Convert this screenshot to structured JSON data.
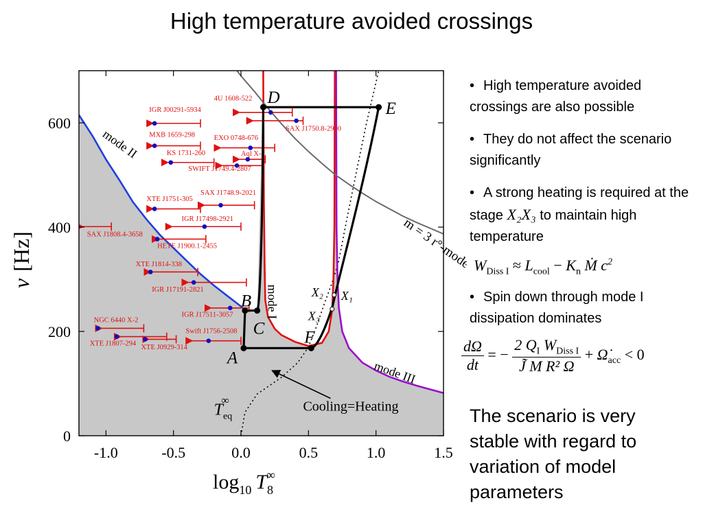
{
  "slide": {
    "title": "High temperature avoided crossings",
    "bullets": [
      {
        "text": "High temperature avoided crossings are also possible"
      },
      {
        "text": "They do not affect the scenario significantly"
      },
      {
        "text_before": "A strong heating is required at the stage ",
        "var": "X₂X₃",
        "text_after": " to maintain high temperature"
      },
      {
        "text": "Spin down through mode I dissipation dominates"
      }
    ],
    "equation1": {
      "lhs": "W",
      "lhs_sub": "Diss I",
      "op": "≈",
      "t1": "L",
      "t1_sub": "cool",
      "minus": "−",
      "t2": "K",
      "t2_sub": "n",
      "t3": "Ṁ c",
      "t3_sup": "2"
    },
    "equation2": {
      "lhs_num": "dΩ",
      "lhs_den": "dt",
      "eq": "= −",
      "rhs_num": "2 Q",
      "rhs_num_sub": "I",
      "rhs_num2": "W",
      "rhs_num2_sub": "Diss I",
      "rhs_den": "J̃ M R² Ω",
      "plus": "+",
      "acc": "Ω̇",
      "acc_sub": "acc",
      "tail": "< 0"
    },
    "conclusion": "The scenario is very stable with regard to variation of model parameters"
  },
  "chart_data": {
    "type": "line",
    "xlabel_base": "log",
    "xlabel_sub": "10",
    "xlabel_var": "T",
    "xlabel_var_sub": "8",
    "xlabel_var_sup": "∞",
    "ylabel_var": "ν",
    "ylabel_unit": "[Hz]",
    "xlim": [
      -1.2,
      1.5
    ],
    "ylim": [
      0,
      700
    ],
    "x_ticks": [
      -1.0,
      -0.5,
      0.0,
      0.5,
      1.0,
      1.5
    ],
    "x_tick_labels": [
      "-1.0",
      "-0.5",
      "0.0",
      "0.5",
      "1.0",
      "1.5"
    ],
    "y_ticks": [
      0,
      200,
      400,
      600
    ],
    "y_tick_labels": [
      "0",
      "200",
      "400",
      "600"
    ],
    "colors": {
      "mode_II": "#1f3fe0",
      "mode_I": "#e01010",
      "mode_III": "#9a10c8",
      "r_mode": "#6a6a6a",
      "unstable_region": "#c8c8c8",
      "path": "#000000",
      "sources": "#e01010",
      "source_dot": "#1010c0"
    },
    "curve_labels": [
      {
        "text": "mode II",
        "x": -1.03,
        "y": 575
      },
      {
        "text": "mode I",
        "x": 0.2,
        "y": 290
      },
      {
        "text": "mode III",
        "x": 0.98,
        "y": 128
      },
      {
        "text": "m = 3 r°-mode",
        "x": 1.2,
        "y": 405
      }
    ],
    "series": [
      {
        "name": "mode II",
        "color": "#1f3fe0",
        "x": [
          -1.2,
          -1.1,
          -1.0,
          -0.9,
          -0.8,
          -0.7,
          -0.6,
          -0.5,
          -0.4,
          -0.3,
          -0.2,
          -0.1,
          0.0,
          0.05
        ],
        "y": [
          615,
          575,
          530,
          490,
          448,
          415,
          385,
          360,
          335,
          310,
          288,
          268,
          248,
          238
        ]
      },
      {
        "name": "mode I",
        "color": "#e01010",
        "x": [
          0.165,
          0.17,
          0.175,
          0.18,
          0.2,
          0.25,
          0.3,
          0.4,
          0.5,
          0.6,
          0.65,
          0.675,
          0.685,
          0.692,
          0.695
        ],
        "y": [
          700,
          450,
          330,
          260,
          228,
          205,
          193,
          180,
          172,
          178,
          200,
          240,
          300,
          400,
          700
        ]
      },
      {
        "name": "mode III",
        "color": "#9a10c8",
        "x": [
          0.705,
          0.708,
          0.715,
          0.725,
          0.75,
          0.8,
          0.9,
          1.0,
          1.1,
          1.2,
          1.3,
          1.4,
          1.5
        ],
        "y": [
          700,
          400,
          300,
          245,
          200,
          168,
          140,
          125,
          113,
          104,
          96,
          89,
          82
        ]
      },
      {
        "name": "m = 3 r°-mode",
        "color": "#6a6a6a",
        "x": [
          -0.03,
          0.0,
          0.1,
          0.2,
          0.3,
          0.4,
          0.5,
          0.6,
          0.7,
          0.8,
          0.9,
          1.0,
          1.1,
          1.2,
          1.3,
          1.4,
          1.5
        ],
        "y": [
          700,
          690,
          660,
          628,
          598,
          570,
          545,
          522,
          500,
          482,
          465,
          449,
          435,
          421,
          409,
          398,
          387
        ]
      }
    ],
    "unstable_region": {
      "x": [
        -1.2,
        -1.1,
        -1.0,
        -0.9,
        -0.8,
        -0.7,
        -0.6,
        -0.5,
        -0.4,
        -0.3,
        -0.2,
        -0.1,
        0.0,
        0.05,
        0.12,
        0.165,
        0.17,
        0.175,
        0.18,
        0.2,
        0.25,
        0.3,
        0.4,
        0.5,
        0.6,
        0.65,
        0.675,
        0.685,
        0.692,
        0.695,
        0.705,
        0.708,
        0.715,
        0.725,
        0.75,
        0.8,
        0.9,
        1.0,
        1.1,
        1.2,
        1.3,
        1.4,
        1.5,
        1.5,
        -1.2
      ],
      "y": [
        615,
        575,
        530,
        490,
        448,
        415,
        385,
        360,
        335,
        310,
        288,
        268,
        248,
        238,
        236,
        700,
        450,
        330,
        260,
        228,
        205,
        193,
        180,
        172,
        178,
        200,
        240,
        300,
        400,
        700,
        700,
        400,
        300,
        245,
        200,
        168,
        140,
        125,
        113,
        104,
        96,
        89,
        82,
        0,
        0
      ]
    },
    "equilibrium_curve": {
      "label": "T",
      "label_sub": "eq",
      "label_sup": "∞",
      "x": [
        0.0,
        0.03,
        0.12,
        0.3,
        0.42,
        0.5,
        0.56,
        0.62,
        0.67,
        0.72,
        0.78,
        0.85,
        0.93,
        1.02
      ],
      "y": [
        0,
        45,
        80,
        112,
        140,
        170,
        210,
        255,
        290,
        330,
        410,
        500,
        600,
        700
      ]
    },
    "annotation": {
      "text": "Cooling=Heating",
      "text_x": 0.46,
      "text_y": 48,
      "arrow_to_x": 0.23,
      "arrow_to_y": 125
    },
    "path": {
      "points": [
        {
          "label": "A",
          "x": 0.02,
          "y": 168
        },
        {
          "label": "B",
          "x": 0.03,
          "y": 240
        },
        {
          "label": "C",
          "x": 0.12,
          "y": 240
        },
        {
          "label": "D",
          "x": 0.165,
          "y": 630
        },
        {
          "label": "E",
          "x": 1.02,
          "y": 630
        },
        {
          "label": "F",
          "x": 0.52,
          "y": 168
        }
      ],
      "crossing_points": [
        {
          "label": "X₂",
          "label2": "X₁",
          "x": 0.69,
          "y": 270
        },
        {
          "label": "X₃",
          "x": 0.675,
          "y": 243
        }
      ]
    },
    "sources": [
      {
        "name": "4U 1608-522",
        "x_lo": -0.04,
        "x_hi": 0.38,
        "y": 620,
        "dot": 0.22,
        "label_x": -0.2,
        "label_y": 643
      },
      {
        "name": "IGR J00291-5934",
        "x_lo": -0.68,
        "x_hi": -0.3,
        "y": 599,
        "dot": -0.64,
        "label_x": -0.68,
        "label_y": 621
      },
      {
        "name": "SAX J1750.8-2900",
        "x_lo": 0.06,
        "x_hi": 0.46,
        "y": 604,
        "dot": 0.41,
        "label_x": 0.33,
        "label_y": 585
      },
      {
        "name": "MXB 1659-298",
        "x_lo": -0.68,
        "x_hi": -0.3,
        "y": 556,
        "dot": -0.64,
        "label_x": -0.68,
        "label_y": 573
      },
      {
        "name": "EXO 0748-676",
        "x_lo": -0.18,
        "x_hi": 0.25,
        "y": 552,
        "dot": 0.07,
        "label_x": -0.2,
        "label_y": 567
      },
      {
        "name": "KS 1731-260",
        "x_lo": -0.57,
        "x_hi": -0.2,
        "y": 524,
        "dot": -0.52,
        "label_x": -0.55,
        "label_y": 538
      },
      {
        "name": "Aql X-1",
        "x_lo": -0.04,
        "x_hi": 0.18,
        "y": 530,
        "dot": 0.05,
        "label_x": 0.0,
        "label_y": 537
      },
      {
        "name": "SWIFT J1749.4-2807",
        "x_lo": -0.17,
        "x_hi": 0.17,
        "y": 518,
        "dot": -0.03,
        "label_x": -0.39,
        "label_y": 508
      },
      {
        "name": "XTE J1751-305",
        "x_lo": -0.68,
        "x_hi": -0.3,
        "y": 435,
        "dot": -0.64,
        "label_x": -0.7,
        "label_y": 450
      },
      {
        "name": "SAX J1748.9-2021",
        "x_lo": -0.3,
        "x_hi": 0.1,
        "y": 442,
        "dot": -0.15,
        "label_x": -0.3,
        "label_y": 462
      },
      {
        "name": "IGR J17498-2921",
        "x_lo": -0.54,
        "x_hi": 0.0,
        "y": 401,
        "dot": -0.27,
        "label_x": -0.44,
        "label_y": 412
      },
      {
        "name": "SAX J1808.4-3658",
        "x_lo": -1.2,
        "x_hi": -0.96,
        "y": 401,
        "dot": null,
        "label_x": -1.14,
        "label_y": 382
      },
      {
        "name": "HETE J1900.1-2455",
        "x_lo": -0.64,
        "x_hi": -0.26,
        "y": 377,
        "dot": -0.62,
        "label_x": -0.62,
        "label_y": 360
      },
      {
        "name": "XTE J1814-338",
        "x_lo": -0.7,
        "x_hi": -0.32,
        "y": 314,
        "dot": -0.67,
        "label_x": -0.78,
        "label_y": 325
      },
      {
        "name": "IGR J17191-2821",
        "x_lo": -0.42,
        "x_hi": 0.04,
        "y": 294,
        "dot": -0.35,
        "label_x": -0.66,
        "label_y": 276
      },
      {
        "name": "IGR J17511-3057",
        "x_lo": -0.25,
        "x_hi": 0.06,
        "y": 245,
        "dot": -0.08,
        "label_x": -0.44,
        "label_y": 228
      },
      {
        "name": "NGC 6440 X-2",
        "x_lo": -1.06,
        "x_hi": -0.72,
        "y": 206,
        "dot": -1.06,
        "label_x": -1.09,
        "label_y": 218
      },
      {
        "name": "Swift J1756-2508",
        "x_lo": -0.39,
        "x_hi": 0.0,
        "y": 182,
        "dot": -0.24,
        "label_x": -0.41,
        "label_y": 197
      },
      {
        "name": "XTE J1807-294",
        "x_lo": -0.92,
        "x_hi": -0.55,
        "y": 190,
        "dot": -0.92,
        "label_x": -1.12,
        "label_y": 173
      },
      {
        "name": "XTE J0929-314",
        "x_lo": -0.71,
        "x_hi": -0.48,
        "y": 185,
        "dot": -0.71,
        "label_x": -0.74,
        "label_y": 166
      }
    ]
  }
}
